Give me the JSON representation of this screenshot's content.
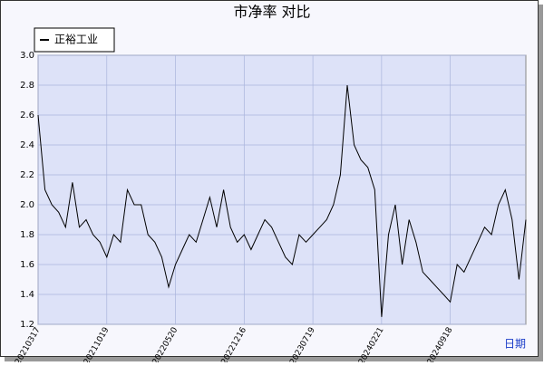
{
  "chart_data": {
    "type": "line",
    "title": "市净率 对比",
    "x_axis_label": "日期",
    "categories": [
      "20210317",
      null,
      null,
      null,
      null,
      null,
      null,
      null,
      null,
      null,
      "20211019",
      null,
      null,
      null,
      null,
      null,
      null,
      null,
      null,
      null,
      "20220520",
      null,
      null,
      null,
      null,
      null,
      null,
      null,
      null,
      null,
      "20221216",
      null,
      null,
      null,
      null,
      null,
      null,
      null,
      null,
      null,
      "20230719",
      null,
      null,
      null,
      null,
      null,
      null,
      null,
      null,
      null,
      "20240221",
      null,
      null,
      null,
      null,
      null,
      null,
      null,
      null,
      null,
      "20240918",
      null,
      null,
      null,
      null,
      null,
      null,
      null,
      null,
      null,
      null,
      null
    ],
    "series": [
      {
        "name": "正裕工业",
        "color": "#000000",
        "values": [
          2.6,
          2.1,
          2.0,
          1.95,
          1.85,
          2.15,
          1.85,
          1.9,
          1.8,
          1.75,
          1.65,
          1.8,
          1.75,
          2.1,
          2.0,
          2.0,
          1.8,
          1.75,
          1.65,
          1.45,
          1.6,
          1.7,
          1.8,
          1.75,
          1.9,
          2.05,
          1.85,
          2.1,
          1.85,
          1.75,
          1.8,
          1.7,
          1.8,
          1.9,
          1.85,
          1.75,
          1.65,
          1.6,
          1.8,
          1.75,
          1.8,
          1.85,
          1.9,
          2.0,
          2.2,
          2.8,
          2.4,
          2.3,
          2.25,
          2.1,
          1.25,
          1.8,
          2.0,
          1.6,
          1.9,
          1.75,
          1.55,
          1.5,
          1.45,
          1.4,
          1.35,
          1.6,
          1.55,
          1.65,
          1.75,
          1.85,
          1.8,
          2.0,
          2.1,
          1.9,
          1.5,
          1.9
        ]
      }
    ],
    "ylim": [
      1.2,
      3.0
    ],
    "yticks": [
      {
        "value": 1.2,
        "label": "1.2"
      },
      {
        "value": 1.4,
        "label": "1.4"
      },
      {
        "value": 1.6,
        "label": "1.6"
      },
      {
        "value": 1.8,
        "label": "1.8"
      },
      {
        "value": 2.0,
        "label": "2.0"
      },
      {
        "value": 2.2,
        "label": "2.2"
      },
      {
        "value": 2.4,
        "label": "2.4"
      },
      {
        "value": 2.6,
        "label": "2.6"
      },
      {
        "value": 2.8,
        "label": "2.8"
      },
      {
        "value": 3.0,
        "label": "3.0"
      }
    ],
    "grid": true,
    "legend": "top-left"
  }
}
